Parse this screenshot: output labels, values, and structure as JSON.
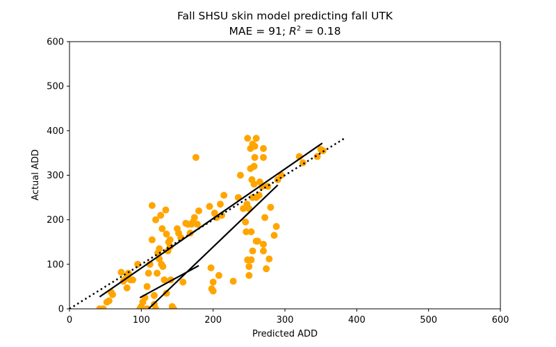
{
  "chart_data": {
    "type": "scatter",
    "title": "Fall SHSU skin model predicting fall UTK",
    "subtitle_prefix": "MAE = 91; ",
    "subtitle_r": "R",
    "subtitle_exp": "2",
    "subtitle_suffix": " = 0.18",
    "xlabel": "Predicted ADD",
    "ylabel": "Actual ADD",
    "xlim": [
      0,
      600
    ],
    "ylim": [
      0,
      600
    ],
    "xticks": [
      0,
      100,
      200,
      300,
      400,
      500,
      600
    ],
    "yticks": [
      0,
      100,
      200,
      300,
      400,
      500,
      600
    ],
    "grid": false,
    "point_color": "#FFA500",
    "line_color": "#000000",
    "points": [
      [
        42,
        0
      ],
      [
        47,
        0
      ],
      [
        52,
        15
      ],
      [
        55,
        18
      ],
      [
        58,
        37
      ],
      [
        60,
        32
      ],
      [
        72,
        82
      ],
      [
        75,
        62
      ],
      [
        78,
        67
      ],
      [
        80,
        47
      ],
      [
        82,
        80
      ],
      [
        85,
        65
      ],
      [
        88,
        65
      ],
      [
        95,
        100
      ],
      [
        98,
        0
      ],
      [
        100,
        5
      ],
      [
        102,
        15
      ],
      [
        105,
        25
      ],
      [
        108,
        50
      ],
      [
        108,
        0
      ],
      [
        110,
        80
      ],
      [
        112,
        100
      ],
      [
        115,
        232
      ],
      [
        115,
        155
      ],
      [
        118,
        30
      ],
      [
        118,
        10
      ],
      [
        120,
        0
      ],
      [
        120,
        200
      ],
      [
        122,
        80
      ],
      [
        123,
        125
      ],
      [
        125,
        135
      ],
      [
        125,
        112
      ],
      [
        127,
        210
      ],
      [
        128,
        100
      ],
      [
        129,
        180
      ],
      [
        130,
        95
      ],
      [
        132,
        65
      ],
      [
        134,
        222
      ],
      [
        135,
        168
      ],
      [
        135,
        35
      ],
      [
        137,
        130
      ],
      [
        138,
        150
      ],
      [
        140,
        155
      ],
      [
        140,
        140
      ],
      [
        141,
        65
      ],
      [
        143,
        5
      ],
      [
        145,
        0
      ],
      [
        150,
        180
      ],
      [
        152,
        170
      ],
      [
        155,
        160
      ],
      [
        158,
        60
      ],
      [
        162,
        192
      ],
      [
        165,
        190
      ],
      [
        168,
        170
      ],
      [
        170,
        190
      ],
      [
        172,
        195
      ],
      [
        174,
        205
      ],
      [
        176,
        340
      ],
      [
        178,
        190
      ],
      [
        180,
        220
      ],
      [
        195,
        230
      ],
      [
        197,
        92
      ],
      [
        198,
        45
      ],
      [
        200,
        60
      ],
      [
        200,
        40
      ],
      [
        202,
        215
      ],
      [
        205,
        205
      ],
      [
        208,
        75
      ],
      [
        210,
        235
      ],
      [
        212,
        210
      ],
      [
        215,
        255
      ],
      [
        228,
        62
      ],
      [
        235,
        250
      ],
      [
        238,
        300
      ],
      [
        242,
        225
      ],
      [
        245,
        195
      ],
      [
        246,
        173
      ],
      [
        247,
        235
      ],
      [
        248,
        383
      ],
      [
        248,
        110
      ],
      [
        250,
        225
      ],
      [
        250,
        95
      ],
      [
        250,
        75
      ],
      [
        252,
        360
      ],
      [
        252,
        315
      ],
      [
        253,
        173
      ],
      [
        253,
        110
      ],
      [
        254,
        290
      ],
      [
        255,
        370
      ],
      [
        255,
        250
      ],
      [
        255,
        130
      ],
      [
        257,
        280
      ],
      [
        257,
        320
      ],
      [
        258,
        340
      ],
      [
        258,
        365
      ],
      [
        260,
        383
      ],
      [
        260,
        250
      ],
      [
        260,
        152
      ],
      [
        262,
        152
      ],
      [
        264,
        255
      ],
      [
        265,
        285
      ],
      [
        268,
        275
      ],
      [
        270,
        340
      ],
      [
        270,
        360
      ],
      [
        270,
        145
      ],
      [
        270,
        130
      ],
      [
        272,
        205
      ],
      [
        274,
        90
      ],
      [
        276,
        275
      ],
      [
        278,
        112
      ],
      [
        280,
        228
      ],
      [
        285,
        165
      ],
      [
        288,
        185
      ],
      [
        290,
        290
      ],
      [
        295,
        300
      ],
      [
        320,
        342
      ],
      [
        325,
        328
      ],
      [
        345,
        342
      ],
      [
        350,
        358
      ],
      [
        353,
        355
      ]
    ],
    "segments": [
      [
        [
          42,
          27
        ],
        [
          352,
          372
        ]
      ],
      [
        [
          98,
          25
        ],
        [
          180,
          97
        ]
      ],
      [
        [
          110,
          0
        ],
        [
          290,
          278
        ]
      ]
    ],
    "dotted_line": [
      [
        0,
        0
      ],
      [
        383,
        383
      ]
    ]
  }
}
